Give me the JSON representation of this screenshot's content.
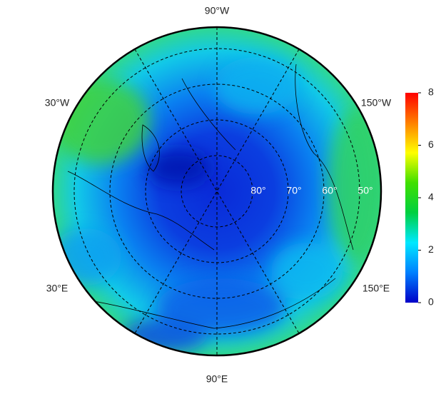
{
  "map": {
    "type": "polar-map",
    "longitude_labels": [
      "90°W",
      "30°W",
      "150°W",
      "30°E",
      "150°E",
      "90°E"
    ],
    "latitude_labels": [
      "80°",
      "70°",
      "60°",
      "50°"
    ]
  },
  "colorbar": {
    "range": [
      0,
      8
    ],
    "ticks": [
      0,
      2,
      4,
      6,
      8
    ],
    "colors": [
      "#0000c8",
      "#0080ff",
      "#00e8ff",
      "#00d040",
      "#40e000",
      "#ffff00",
      "#ff8000",
      "#ff0000"
    ]
  }
}
